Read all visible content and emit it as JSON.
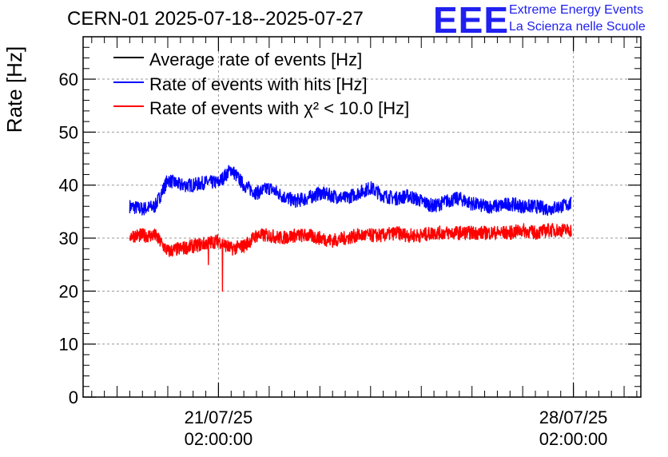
{
  "header": {
    "title": "CERN-01 2025-07-18--2025-07-27",
    "logo_text": "EEE",
    "logo_line1": "Extreme Energy Events",
    "logo_line2": "La Scienza nelle Scuole"
  },
  "colors": {
    "average": "#000000",
    "hits": "#0000ff",
    "chi2": "#ff0000",
    "grid": "#9a9a9a",
    "logo": "#2020f0"
  },
  "chart_data": {
    "type": "line",
    "title": "CERN-01 2025-07-18--2025-07-27",
    "ylabel": "Rate [Hz]",
    "ylim": [
      0,
      68
    ],
    "xlim": [
      0.33,
      11.33
    ],
    "yticks": [
      0,
      10,
      20,
      30,
      40,
      50,
      60
    ],
    "xticks": [
      {
        "x": 3.0,
        "date": "21/07/25",
        "time": "02:00:00"
      },
      {
        "x": 10.0,
        "date": "28/07/25",
        "time": "02:00:00"
      }
    ],
    "grid": true,
    "legend_position": "top-left",
    "series": [
      {
        "name": "Average rate of events [Hz]",
        "color": "#000000",
        "data_x": [],
        "values": []
      },
      {
        "name": "Rate of events with hits [Hz]",
        "color": "#0000ff",
        "data_x": [
          1.25,
          1.5,
          1.75,
          2.0,
          2.25,
          2.5,
          2.75,
          3.0,
          3.25,
          3.5,
          3.75,
          4.0,
          4.25,
          4.5,
          4.75,
          5.0,
          5.25,
          5.5,
          5.75,
          6.0,
          6.25,
          6.5,
          6.75,
          7.0,
          7.25,
          7.5,
          7.75,
          8.0,
          8.25,
          8.5,
          8.75,
          9.0,
          9.25,
          9.5,
          9.75,
          9.96
        ],
        "values": [
          36,
          35.5,
          36,
          41,
          40,
          40,
          40.5,
          40.5,
          43,
          40,
          38.5,
          39.5,
          38,
          37,
          37.5,
          38.5,
          38,
          37.5,
          38.5,
          39.5,
          38,
          37.5,
          38,
          37,
          36,
          37,
          37.5,
          36.5,
          36,
          36,
          36.5,
          36,
          36,
          35.5,
          36,
          36.5
        ]
      },
      {
        "name": "Rate of events with χ² < 10.0 [Hz]",
        "color": "#ff0000",
        "data_x": [
          1.25,
          1.5,
          1.75,
          2.0,
          2.25,
          2.5,
          2.75,
          3.0,
          3.25,
          3.5,
          3.75,
          4.0,
          4.25,
          4.5,
          4.75,
          5.0,
          5.25,
          5.5,
          5.75,
          6.0,
          6.25,
          6.5,
          6.75,
          7.0,
          7.25,
          7.5,
          7.75,
          8.0,
          8.25,
          8.5,
          8.75,
          9.0,
          9.25,
          9.5,
          9.75,
          9.96
        ],
        "values": [
          30.5,
          30.5,
          30.5,
          27.5,
          28,
          28.5,
          29,
          29.5,
          28,
          28.5,
          30.5,
          30.5,
          30,
          30.5,
          30.5,
          30,
          29.5,
          30,
          30.5,
          30.5,
          30.5,
          31,
          30.5,
          30.5,
          31,
          31,
          31,
          31,
          31,
          31,
          31,
          31.5,
          31,
          31.5,
          31.5,
          31.5
        ]
      }
    ],
    "annotations": [
      {
        "series": "Rate of events with χ² < 10.0 [Hz]",
        "x": 2.8,
        "dip_to": 25
      },
      {
        "series": "Rate of events with χ² < 10.0 [Hz]",
        "x": 3.08,
        "dip_to": 20
      }
    ]
  }
}
